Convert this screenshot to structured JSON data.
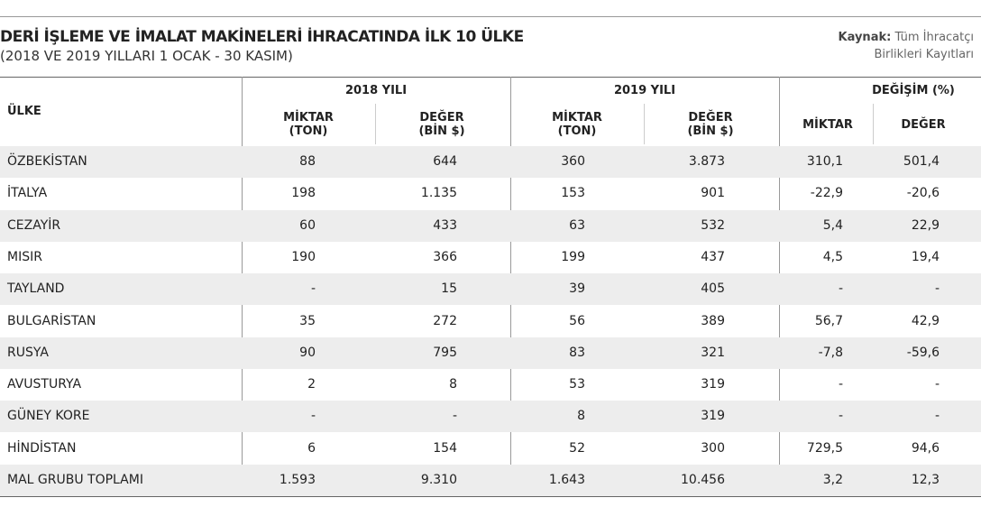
{
  "header": {
    "title": "DERİ İŞLEME VE İMALAT MAKİNELERİ İHRACATINDA İLK 10 ÜLKE",
    "subtitle": "(2018 VE 2019 YILLARI 1 OCAK - 30 KASIM)",
    "source_label": "Kaynak:",
    "source_line1": "Tüm İhracatçı",
    "source_line2": "Birlikleri Kayıtları"
  },
  "table": {
    "country_header": "ÜLKE",
    "groups": [
      "2018 YILI",
      "2019 YILI",
      "DEĞİŞİM (%)"
    ],
    "subheaders": [
      [
        "MİKTAR",
        "(TON)"
      ],
      [
        "DEĞER",
        "(BİN $)"
      ],
      [
        "MİKTAR",
        "(TON)"
      ],
      [
        "DEĞER",
        "(BİN $)"
      ],
      [
        "MİKTAR"
      ],
      [
        "DEĞER"
      ]
    ],
    "rows": [
      [
        "ÖZBEKİSTAN",
        "88",
        "644",
        "360",
        "3.873",
        "310,1",
        "501,4"
      ],
      [
        "İTALYA",
        "198",
        "1.135",
        "153",
        "901",
        "-22,9",
        "-20,6"
      ],
      [
        "CEZAYİR",
        "60",
        "433",
        "63",
        "532",
        "5,4",
        "22,9"
      ],
      [
        "MISIR",
        "190",
        "366",
        "199",
        "437",
        "4,5",
        "19,4"
      ],
      [
        "TAYLAND",
        "-",
        "15",
        "39",
        "405",
        "-",
        "-"
      ],
      [
        "BULGARİSTAN",
        "35",
        "272",
        "56",
        "389",
        "56,7",
        "42,9"
      ],
      [
        "RUSYA",
        "90",
        "795",
        "83",
        "321",
        "-7,8",
        "-59,6"
      ],
      [
        "AVUSTURYA",
        "2",
        "8",
        "53",
        "319",
        "-",
        "-"
      ],
      [
        "GÜNEY KORE",
        "-",
        "-",
        "8",
        "319",
        "-",
        "-"
      ],
      [
        "HİNDİSTAN",
        "6",
        "154",
        "52",
        "300",
        "729,5",
        "94,6"
      ],
      [
        "MAL GRUBU TOPLAMI",
        "1.593",
        "9.310",
        "1.643",
        "10.456",
        "3,2",
        "12,3"
      ]
    ]
  }
}
